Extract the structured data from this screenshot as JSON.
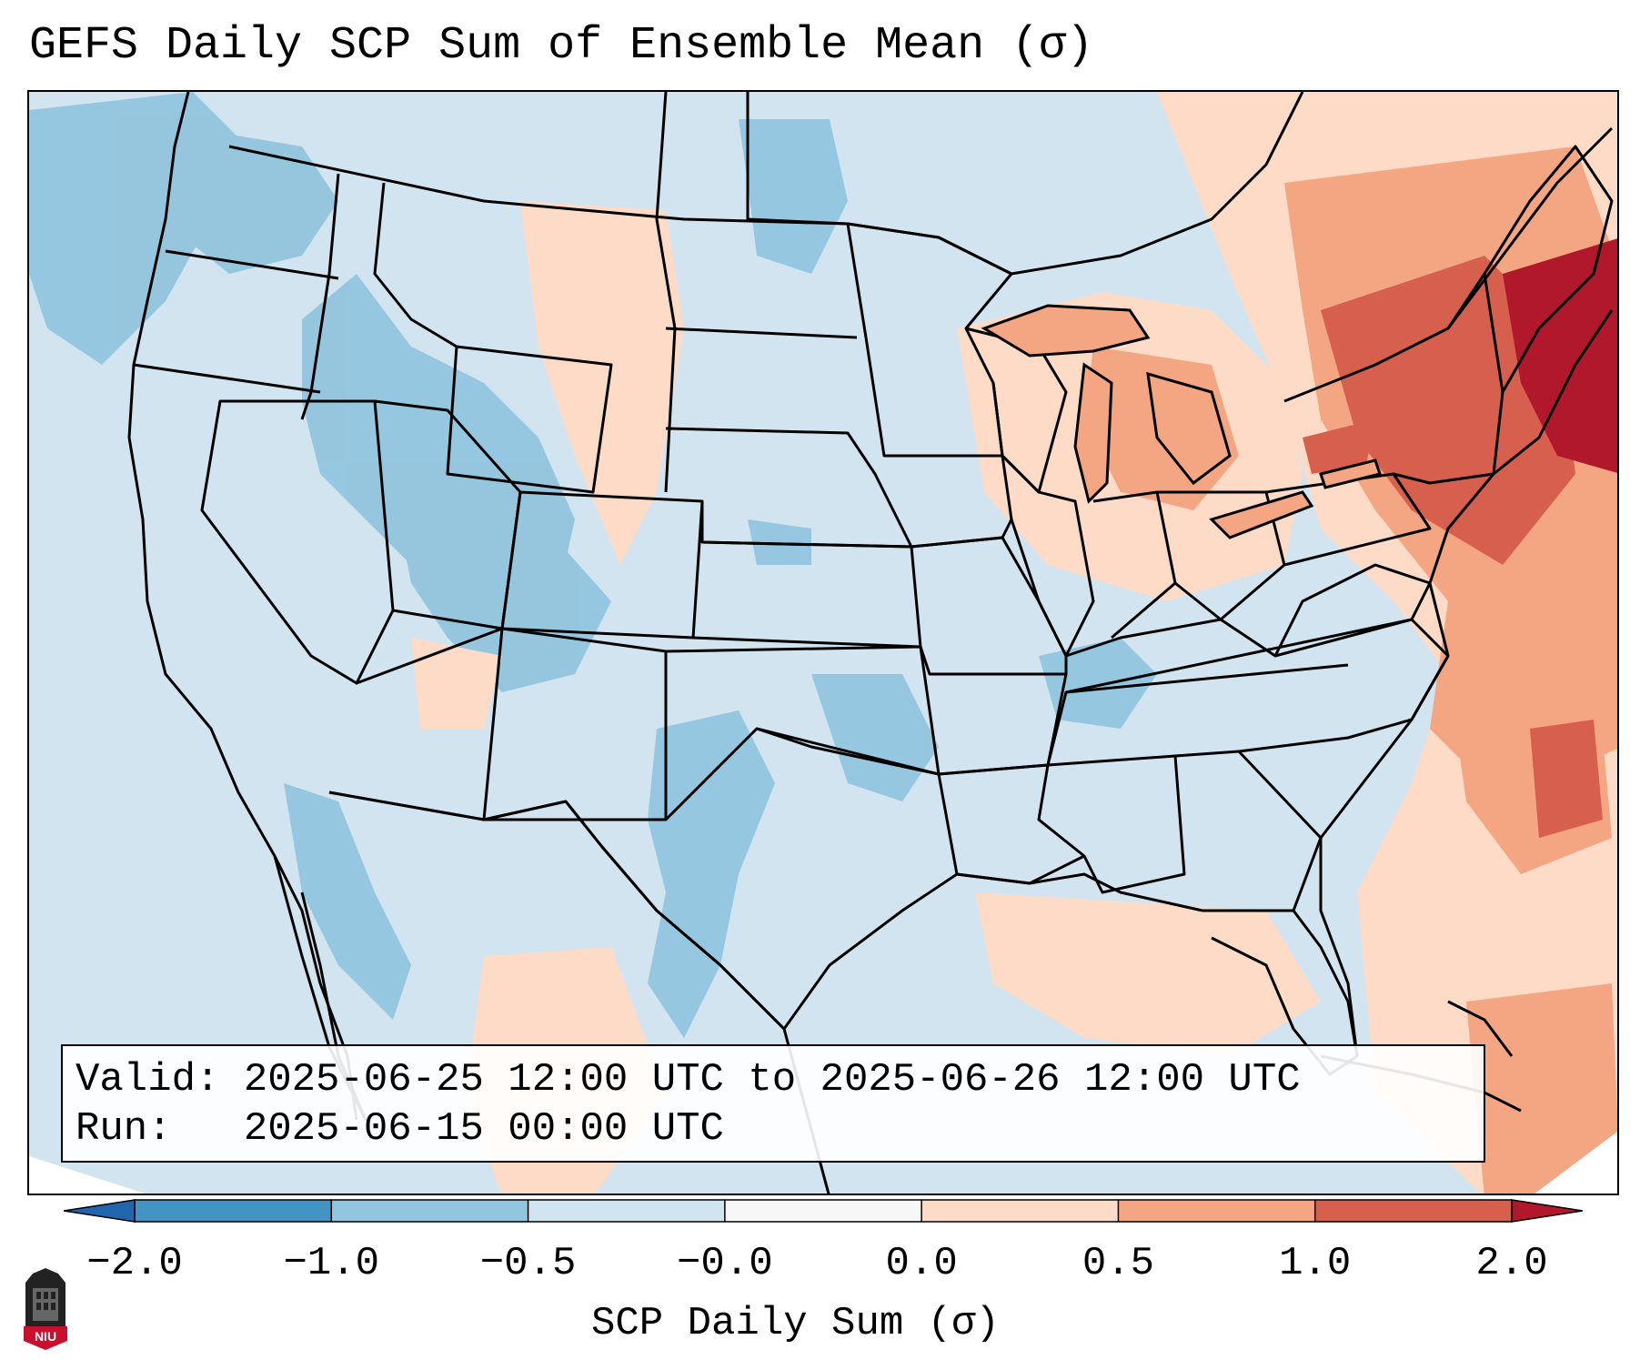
{
  "title": "GEFS Daily SCP Sum of Ensemble Mean (σ)",
  "info": {
    "valid_label": "Valid:",
    "valid_value": "2025-06-25 12:00 UTC to 2025-06-26 12:00 UTC",
    "run_label": "Run:",
    "run_value": "2025-06-15 00:00 UTC"
  },
  "colorbar": {
    "label": "SCP Daily Sum (σ)",
    "ticks": [
      "−2.0",
      "−1.0",
      "−0.5",
      "−0.0",
      "0.0",
      "0.5",
      "1.0",
      "2.0"
    ],
    "colors": [
      "#4393c3",
      "#92c5de",
      "#d1e5f0",
      "#f7f7f7",
      "#fddbc7",
      "#f4a582",
      "#d6604d"
    ],
    "extend_low_color": "#2166ac",
    "extend_high_color": "#b2182b"
  },
  "logo": {
    "text": "NIU"
  }
}
